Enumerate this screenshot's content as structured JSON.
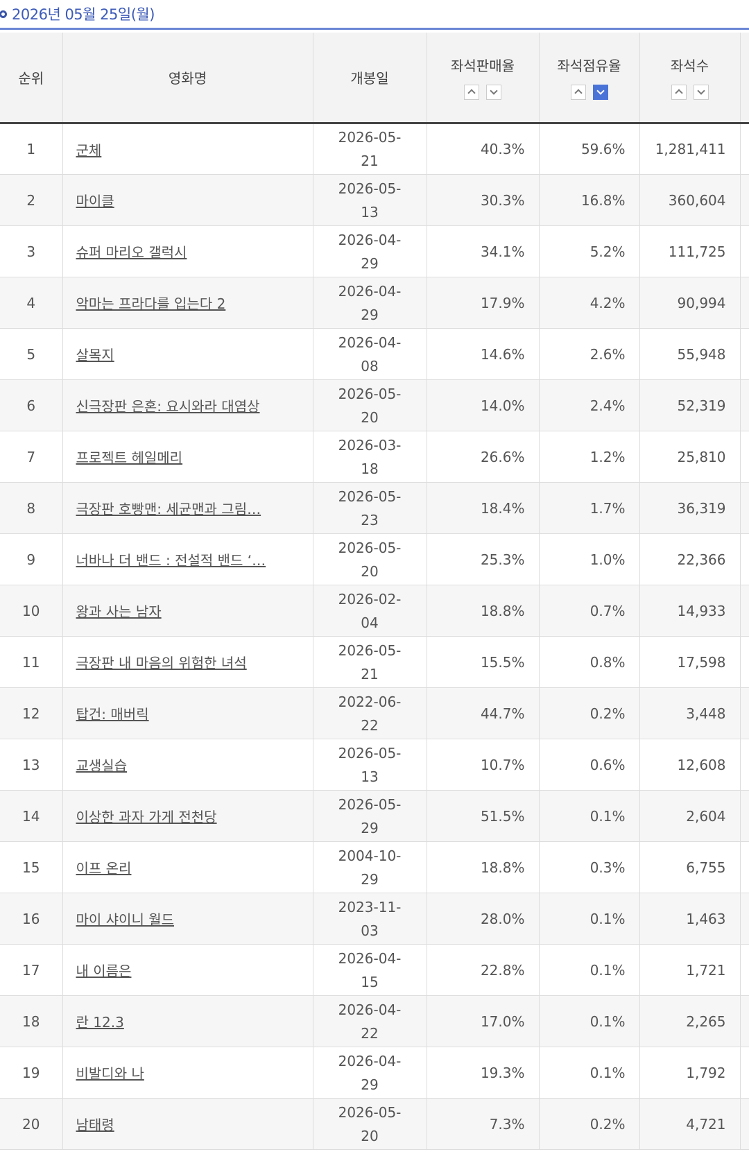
{
  "header": {
    "title": "2026년 05월 25일(월)"
  },
  "table": {
    "columns": [
      "순위",
      "영화명",
      "개봉일",
      "좌석판매율",
      "좌석점유율",
      "좌석수"
    ],
    "rows": [
      [
        "1",
        "군체",
        "2026-05-21",
        "40.3%",
        "59.6%",
        "1,281,411"
      ],
      [
        "2",
        "마이클",
        "2026-05-13",
        "30.3%",
        "16.8%",
        "360,604"
      ],
      [
        "3",
        "슈퍼 마리오 갤럭시",
        "2026-04-29",
        "34.1%",
        "5.2%",
        "111,725"
      ],
      [
        "4",
        "악마는 프라다를 입는다 2",
        "2026-04-29",
        "17.9%",
        "4.2%",
        "90,994"
      ],
      [
        "5",
        "살목지",
        "2026-04-08",
        "14.6%",
        "2.6%",
        "55,948"
      ],
      [
        "6",
        "신극장판 은혼: 요시와라 대염상",
        "2026-05-20",
        "14.0%",
        "2.4%",
        "52,319"
      ],
      [
        "7",
        "프로젝트 헤일메리",
        "2026-03-18",
        "26.6%",
        "1.2%",
        "25,810"
      ],
      [
        "8",
        "극장판 호빵맨: 세균맨과 그림…",
        "2026-05-23",
        "18.4%",
        "1.7%",
        "36,319"
      ],
      [
        "9",
        "너바나 더 밴드 : 전설적 밴드 ‘…",
        "2026-05-20",
        "25.3%",
        "1.0%",
        "22,366"
      ],
      [
        "10",
        "왕과 사는 남자",
        "2026-02-04",
        "18.8%",
        "0.7%",
        "14,933"
      ],
      [
        "11",
        "극장판 내 마음의 위험한 녀석",
        "2026-05-21",
        "15.5%",
        "0.8%",
        "17,598"
      ],
      [
        "12",
        "탑건: 매버릭",
        "2022-06-22",
        "44.7%",
        "0.2%",
        "3,448"
      ],
      [
        "13",
        "교생실습",
        "2026-05-13",
        "10.7%",
        "0.6%",
        "12,608"
      ],
      [
        "14",
        "이상한 과자 가게 전천당",
        "2026-05-29",
        "51.5%",
        "0.1%",
        "2,604"
      ],
      [
        "15",
        "이프 온리",
        "2004-10-29",
        "18.8%",
        "0.3%",
        "6,755"
      ],
      [
        "16",
        "마이 샤이니 월드",
        "2023-11-03",
        "28.0%",
        "0.1%",
        "1,463"
      ],
      [
        "17",
        "내 이름은",
        "2026-04-15",
        "22.8%",
        "0.1%",
        "1,721"
      ],
      [
        "18",
        "란 12.3",
        "2026-04-22",
        "17.0%",
        "0.1%",
        "2,265"
      ],
      [
        "19",
        "비발디와 나",
        "2026-04-29",
        "19.3%",
        "0.1%",
        "1,792"
      ],
      [
        "20",
        "남태령",
        "2026-05-20",
        "7.3%",
        "0.2%",
        "4,721"
      ]
    ]
  }
}
